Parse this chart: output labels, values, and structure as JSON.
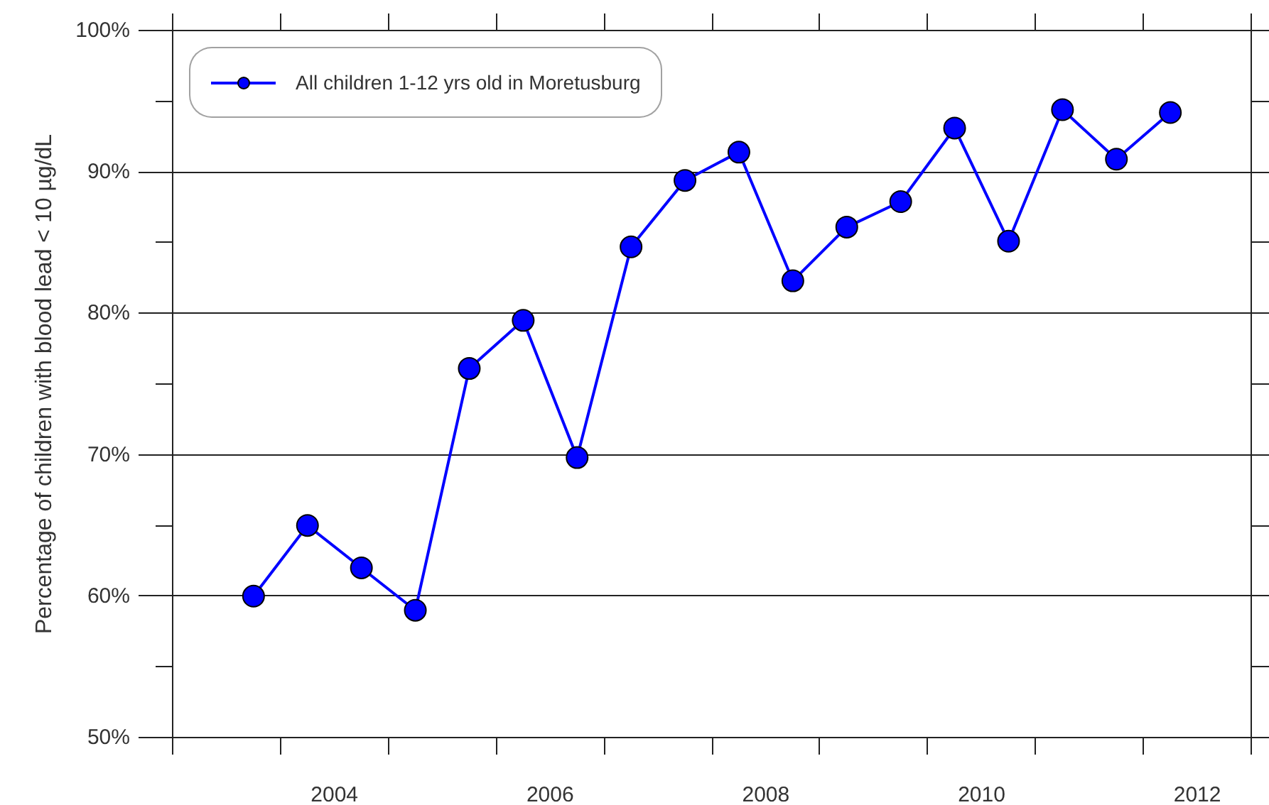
{
  "chart_data": {
    "type": "line",
    "ylabel": "Percentage of children with blood lead < 10 µg/dL",
    "x": [
      2003.75,
      2004.25,
      2004.75,
      2005.25,
      2005.75,
      2006.25,
      2006.75,
      2007.25,
      2007.75,
      2008.25,
      2008.75,
      2009.25,
      2009.75,
      2010.25,
      2010.75,
      2011.25,
      2011.75,
      2012.25
    ],
    "series": [
      {
        "name": "All children 1-12 yrs old in Moretusburg",
        "color": "#0000ff",
        "values": [
          60.0,
          65.0,
          62.0,
          59.0,
          76.1,
          79.5,
          69.8,
          84.7,
          89.4,
          91.4,
          82.3,
          86.1,
          87.9,
          93.1,
          85.1,
          94.4,
          90.9,
          94.2
        ]
      }
    ],
    "xlim": [
      2003,
      2013
    ],
    "xticks": [
      {
        "value": 2003,
        "label": null
      },
      {
        "value": 2004,
        "label": null
      },
      {
        "value": 2004.5,
        "label": "2004"
      },
      {
        "value": 2005,
        "label": null
      },
      {
        "value": 2006,
        "label": null
      },
      {
        "value": 2006.5,
        "label": "2006"
      },
      {
        "value": 2007,
        "label": null
      },
      {
        "value": 2008,
        "label": null
      },
      {
        "value": 2008.5,
        "label": "2008"
      },
      {
        "value": 2009,
        "label": null
      },
      {
        "value": 2010,
        "label": null
      },
      {
        "value": 2010.5,
        "label": "2010"
      },
      {
        "value": 2011,
        "label": null
      },
      {
        "value": 2012,
        "label": null
      },
      {
        "value": 2012.5,
        "label": "2012"
      },
      {
        "value": 2013,
        "label": null
      }
    ],
    "ylim": [
      50,
      100
    ],
    "yticks": [
      {
        "value": 50,
        "label": "50%"
      },
      {
        "value": 55,
        "label": null
      },
      {
        "value": 60,
        "label": "60%"
      },
      {
        "value": 65,
        "label": null
      },
      {
        "value": 70,
        "label": "70%"
      },
      {
        "value": 75,
        "label": null
      },
      {
        "value": 80,
        "label": "80%"
      },
      {
        "value": 85,
        "label": null
      },
      {
        "value": 90,
        "label": "90%"
      },
      {
        "value": 95,
        "label": null
      },
      {
        "value": 100,
        "label": "100%"
      }
    ],
    "grid": "y",
    "legend": "top left",
    "marker": "circle",
    "line_style": "solid"
  }
}
